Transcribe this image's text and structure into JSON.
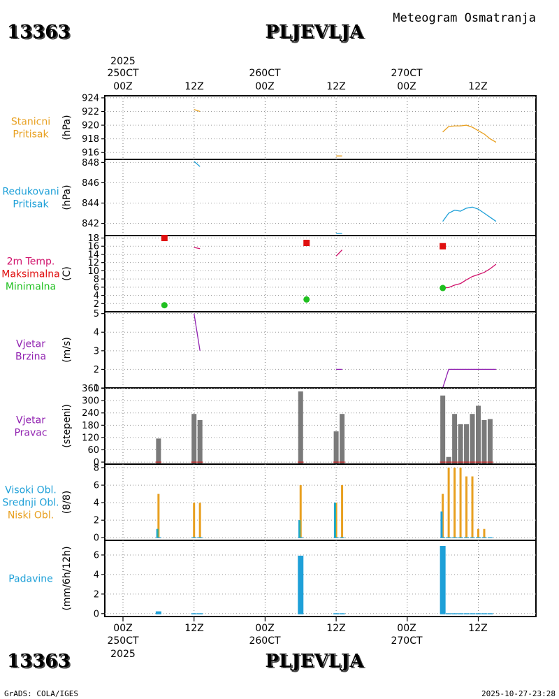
{
  "header": {
    "station_id": "13363",
    "station_name": "PLJEVLJA",
    "product_title": "Meteogram Osmatranja"
  },
  "footer": {
    "station_id": "13363",
    "station_name": "PLJEVLJA",
    "credit": "GrADS: COLA/IGES",
    "timestamp": "2025-10-27-23:28"
  },
  "time_axis": {
    "year": "2025",
    "hours": [
      "00Z",
      "12Z",
      "00Z",
      "12Z",
      "00Z",
      "12Z"
    ],
    "dates": [
      "250CT",
      "260CT",
      "270CT"
    ]
  },
  "colors": {
    "pressure_station": "#e8a020",
    "pressure_reduced": "#1ea0d8",
    "temp_line": "#d0106a",
    "temp_max": "#e01010",
    "temp_min": "#20c020",
    "wind_speed": "#9020b0",
    "wind_dir_bar": "#7a7a7a",
    "cloud_high": "#1ea0d8",
    "cloud_mid": "#2ab0a0",
    "cloud_low": "#e8a020",
    "precip": "#1ea0d8"
  },
  "chart_data": [
    {
      "id": "station_pressure",
      "type": "line",
      "label_lines": [
        "Stanicni",
        "Pritisak"
      ],
      "ylabel": "(hPa)",
      "ylim": [
        915,
        924.3
      ],
      "yticks": [
        916,
        918,
        920,
        922,
        924
      ],
      "series": [
        {
          "name": "Stanicni Pritisak",
          "segments": [
            [
              [
                12,
                922.3
              ],
              [
                13,
                922.0
              ]
            ],
            [
              [
                36,
                915.5
              ],
              [
                37,
                915.5
              ]
            ],
            [
              [
                54,
                919.0
              ],
              [
                55,
                919.8
              ],
              [
                56,
                919.9
              ],
              [
                57,
                919.9
              ],
              [
                58,
                920.0
              ],
              [
                59,
                919.7
              ],
              [
                60,
                919.2
              ],
              [
                61,
                918.7
              ],
              [
                62,
                918.0
              ],
              [
                63,
                917.5
              ]
            ]
          ]
        }
      ]
    },
    {
      "id": "reduced_pressure",
      "type": "line",
      "label_lines": [
        "Redukovani",
        "Pritisak"
      ],
      "ylabel": "(hPa)",
      "ylim": [
        840.8,
        848.3
      ],
      "yticks": [
        842,
        844,
        846,
        848
      ],
      "series": [
        {
          "name": "Redukovani Pritisak",
          "segments": [
            [
              [
                12,
                848.1
              ],
              [
                13,
                847.6
              ]
            ],
            [
              [
                36,
                841.0
              ],
              [
                37,
                841.0
              ]
            ],
            [
              [
                54,
                842.2
              ],
              [
                55,
                843.0
              ],
              [
                56,
                843.3
              ],
              [
                57,
                843.2
              ],
              [
                58,
                843.5
              ],
              [
                59,
                843.6
              ],
              [
                60,
                843.4
              ],
              [
                61,
                843.0
              ],
              [
                62,
                842.6
              ],
              [
                63,
                842.2
              ]
            ]
          ]
        }
      ]
    },
    {
      "id": "temperature",
      "type": "line",
      "label_lines": [
        "2m Temp.",
        "Maksimalna",
        "Minimalna"
      ],
      "ylabel": "(C)",
      "ylim": [
        0,
        18.6
      ],
      "yticks": [
        2,
        4,
        6,
        8,
        10,
        12,
        14,
        16,
        18
      ],
      "series": [
        {
          "name": "2m Temp.",
          "segments": [
            [
              [
                12,
                15.7
              ],
              [
                13,
                15.4
              ]
            ],
            [
              [
                36,
                13.6
              ],
              [
                37,
                15.1
              ]
            ],
            [
              [
                54,
                5.8
              ],
              [
                55,
                5.9
              ],
              [
                56,
                6.5
              ],
              [
                57,
                6.9
              ],
              [
                58,
                7.8
              ],
              [
                59,
                8.6
              ],
              [
                60,
                9.1
              ],
              [
                61,
                9.6
              ],
              [
                62,
                10.5
              ],
              [
                63,
                11.6
              ]
            ]
          ]
        }
      ],
      "maxima": [
        [
          7,
          18.0
        ],
        [
          31,
          16.8
        ],
        [
          54,
          16.0
        ]
      ],
      "minima": [
        [
          7,
          1.6
        ],
        [
          31,
          3.0
        ],
        [
          54,
          5.8
        ]
      ]
    },
    {
      "id": "wind_speed",
      "type": "line",
      "label_lines": [
        "Vjetar",
        "Brzina"
      ],
      "ylabel": "(m/s)",
      "ylim": [
        1,
        5.1
      ],
      "yticks": [
        1,
        2,
        3,
        4,
        5
      ],
      "series": [
        {
          "name": "Vjetar Brzina",
          "segments": [
            [
              [
                12,
                5.0
              ],
              [
                13,
                3.0
              ]
            ],
            [
              [
                36,
                2.0
              ],
              [
                37,
                2.0
              ]
            ],
            [
              [
                54,
                1.0
              ],
              [
                55,
                2.0
              ],
              [
                56,
                2.0
              ],
              [
                57,
                2.0
              ],
              [
                58,
                2.0
              ],
              [
                59,
                2.0
              ],
              [
                60,
                2.0
              ],
              [
                61,
                2.0
              ],
              [
                62,
                2.0
              ],
              [
                63,
                2.0
              ]
            ]
          ]
        }
      ]
    },
    {
      "id": "wind_direction",
      "type": "bar",
      "label_lines": [
        "Vjetar",
        "Pravac"
      ],
      "ylabel": "(stepeni)",
      "ylim": [
        -10,
        362
      ],
      "yticks": [
        0,
        60,
        120,
        180,
        240,
        300,
        360
      ],
      "x": [
        6,
        12,
        13,
        30,
        36,
        37,
        54,
        55,
        56,
        57,
        58,
        59,
        60,
        61,
        62
      ],
      "values": [
        115,
        235,
        205,
        345,
        150,
        235,
        325,
        25,
        235,
        185,
        185,
        235,
        275,
        205,
        210
      ]
    },
    {
      "id": "cloud_cover",
      "type": "bar",
      "label_lines": [
        "Visoki Obl.",
        "Srednji Obl.",
        "Niski Obl."
      ],
      "ylabel": "(8/8)",
      "ylim": [
        -0.3,
        8.4
      ],
      "yticks": [
        0,
        2,
        4,
        6,
        8
      ],
      "x": [
        6,
        12,
        13,
        30,
        36,
        37,
        54,
        55,
        56,
        57,
        58,
        59,
        60,
        61,
        62
      ],
      "series": [
        {
          "name": "Visoki Obl.",
          "values": [
            1,
            0,
            0,
            2,
            4,
            0,
            3,
            0,
            0,
            0,
            0,
            0,
            0,
            0,
            0
          ]
        },
        {
          "name": "Srednji Obl.",
          "values": [
            1,
            0,
            0,
            2,
            4,
            0,
            0,
            0,
            0,
            0,
            0,
            0,
            0,
            0,
            0
          ]
        },
        {
          "name": "Niski Obl.",
          "values": [
            5,
            4,
            4,
            6,
            4,
            6,
            5,
            8,
            8,
            8,
            7,
            7,
            1,
            1,
            0
          ]
        }
      ]
    },
    {
      "id": "precipitation",
      "type": "bar",
      "label_lines": [
        "Padavine"
      ],
      "ylabel": "(mm/6h/12h)",
      "ylim": [
        -0.3,
        7.5
      ],
      "yticks": [
        0,
        2,
        4,
        6
      ],
      "x": [
        6,
        12,
        13,
        30,
        36,
        37,
        54,
        55,
        56,
        57,
        58,
        59,
        60,
        61,
        62
      ],
      "values": [
        0.3,
        0.05,
        0.05,
        6.0,
        0.05,
        0.05,
        7.0,
        0.05,
        0.05,
        0.05,
        0.05,
        0.05,
        0.05,
        0.05,
        0.05
      ]
    }
  ]
}
